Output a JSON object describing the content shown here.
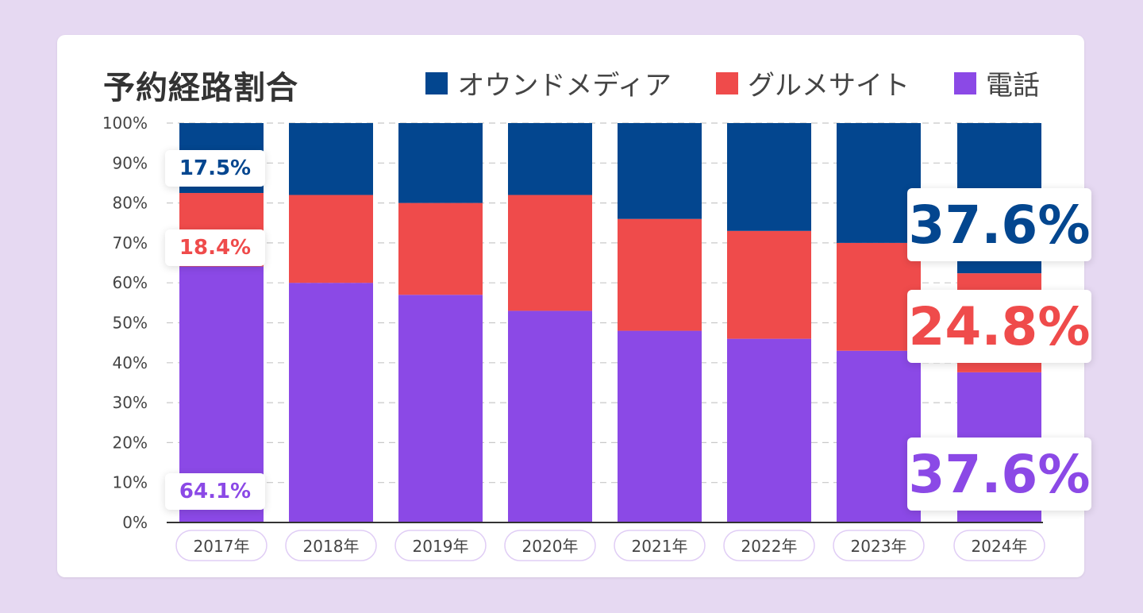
{
  "chart_data": {
    "type": "bar",
    "stacked": true,
    "title": "予約経路割合",
    "categories": [
      "2017年",
      "2018年",
      "2019年",
      "2020年",
      "2021年",
      "2022年",
      "2023年",
      "2024年"
    ],
    "series": [
      {
        "name": "電話",
        "color": "#8b49e6",
        "values": [
          64.1,
          60,
          57,
          53,
          48,
          46,
          43,
          37.6
        ]
      },
      {
        "name": "グルメサイト",
        "color": "#ef4b4b",
        "values": [
          18.4,
          22,
          23,
          29,
          28,
          27,
          27,
          24.8
        ]
      },
      {
        "name": "オウンドメディア",
        "color": "#03468f",
        "values": [
          17.5,
          18,
          20,
          18,
          24,
          27,
          30,
          37.6
        ]
      }
    ],
    "legend": [
      "オウンドメディア",
      "グルメサイト",
      "電話"
    ],
    "ylim": [
      0,
      100
    ],
    "yticks": [
      "0%",
      "10%",
      "20%",
      "30%",
      "40%",
      "50%",
      "60%",
      "70%",
      "80%",
      "90%",
      "100%"
    ],
    "grid": true,
    "xlabel": "",
    "ylabel": ""
  },
  "callouts": {
    "first": {
      "owned": "17.5%",
      "gourmet": "18.4%",
      "phone": "64.1%"
    },
    "last": {
      "owned": "37.6%",
      "gourmet": "24.8%",
      "phone": "37.6%"
    }
  },
  "colors": {
    "owned": "#03468f",
    "gourmet": "#ef4b4b",
    "phone": "#8b49e6",
    "background": "#e6d9f2"
  }
}
